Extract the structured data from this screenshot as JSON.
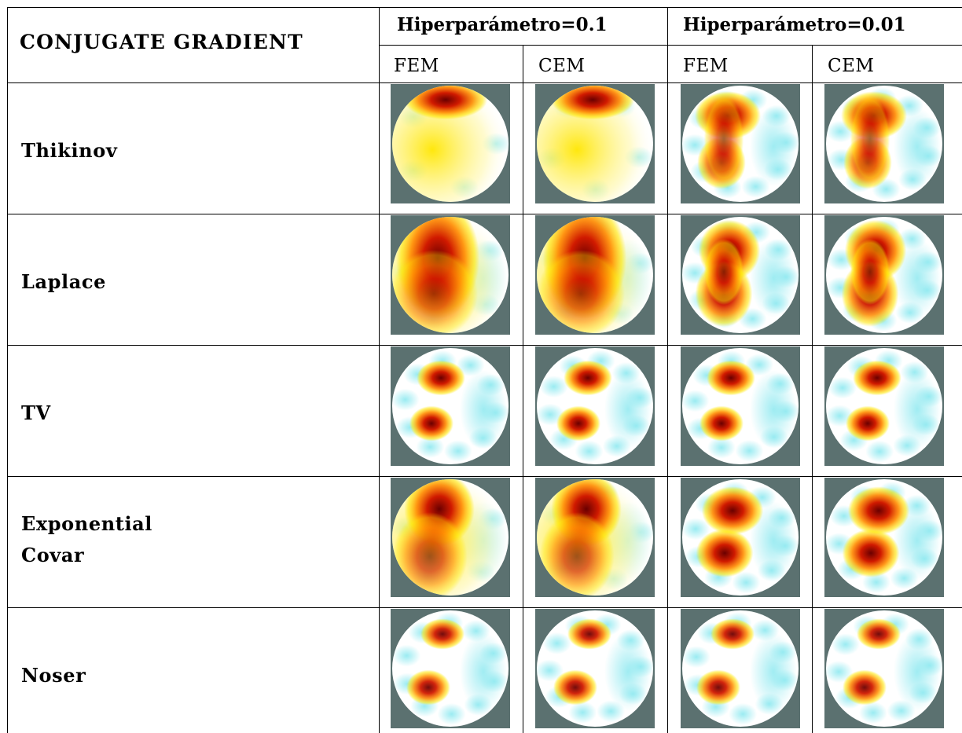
{
  "table": {
    "title": "CONJUGATE GRADIENT",
    "groups": [
      "Hiperparámetro=0.1",
      "Hiperparámetro=0.01"
    ],
    "subheaders": [
      "FEM",
      "CEM",
      "FEM",
      "CEM"
    ],
    "rows": [
      {
        "label": "Thikinov"
      },
      {
        "label": "Laplace"
      },
      {
        "label": "TV"
      },
      {
        "label": "Exponential",
        "label2": "Covar"
      },
      {
        "label": "Noser"
      }
    ]
  },
  "colors": {
    "image_background": "#5b7170",
    "high": "#6a0000",
    "mid_high": "#d01a00",
    "mid": "#ff8a00",
    "low_positive": "#ffe600",
    "neutral": "#ffffff",
    "negative": "#8fe9f0"
  }
}
